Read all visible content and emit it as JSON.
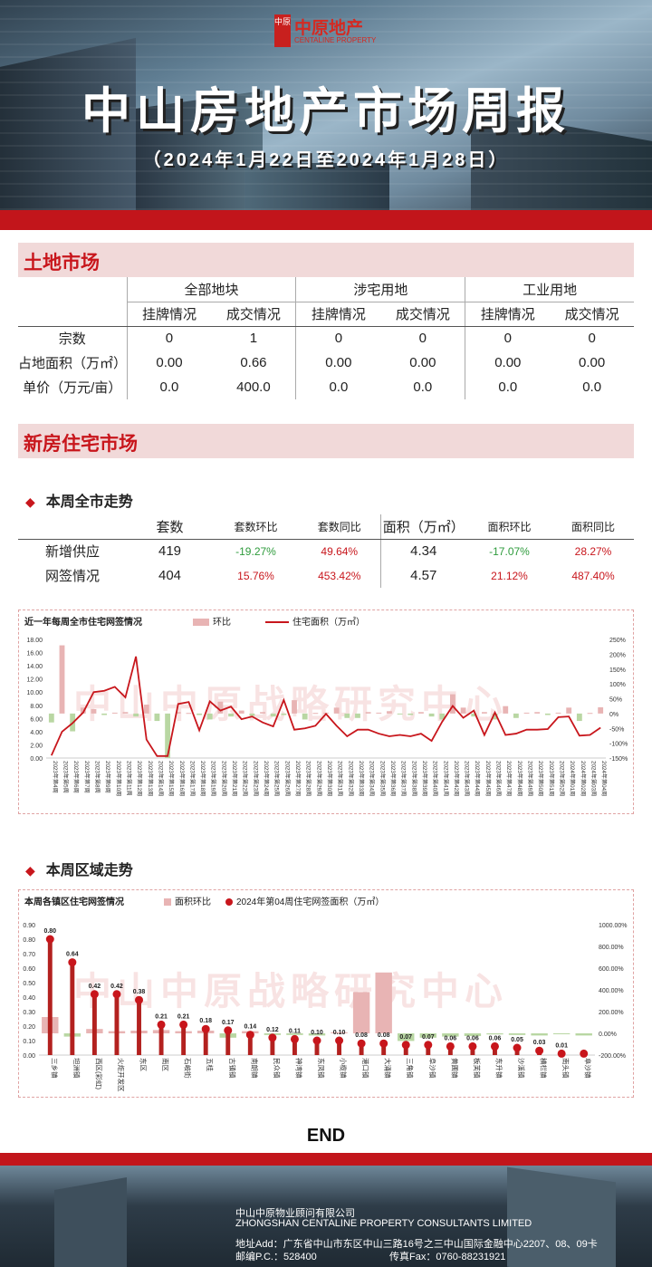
{
  "header": {
    "logo_mark": "中原",
    "logo_name": "中原地产",
    "logo_en": "CENTALINE PROPERTY",
    "title": "中山房地产市场周报",
    "subtitle": "（2024年1月22日至2024年1月28日）"
  },
  "land": {
    "section_title": "土地市场",
    "groups": [
      "全部地块",
      "涉宅用地",
      "工业用地"
    ],
    "subheaders": [
      "挂牌情况",
      "成交情况",
      "挂牌情况",
      "成交情况",
      "挂牌情况",
      "成交情况"
    ],
    "rows": [
      {
        "label": "宗数",
        "values": [
          "0",
          "1",
          "0",
          "0",
          "0",
          "0"
        ]
      },
      {
        "label": "占地面积（万㎡）",
        "values": [
          "0.00",
          "0.66",
          "0.00",
          "0.00",
          "0.00",
          "0.00"
        ]
      },
      {
        "label": "单价（万元/亩）",
        "values": [
          "0.0",
          "400.0",
          "0.0",
          "0.0",
          "0.0",
          "0.0"
        ]
      }
    ]
  },
  "new_home": {
    "section_title": "新房住宅市场",
    "city_heading": "本周全市走势",
    "city_headers": [
      "套数",
      "套数环比",
      "套数同比",
      "面积（万㎡）",
      "面积环比",
      "面积同比"
    ],
    "city_rows": [
      {
        "label": "新增供应",
        "values": [
          "419",
          "-19.27%",
          "49.64%",
          "4.34",
          "-17.07%",
          "28.27%"
        ]
      },
      {
        "label": "网签情况",
        "values": [
          "404",
          "15.76%",
          "453.42%",
          "4.57",
          "21.12%",
          "487.40%"
        ]
      }
    ],
    "region_heading": "本周区域走势"
  },
  "watermark": "中山中原战略研究中心",
  "colors": {
    "accent_red": "#c8161c",
    "pink_bar": "#e8b4b4",
    "green_bar": "#b9d7a3",
    "neg_text": "#2e9b3c"
  },
  "chart_data": [
    {
      "type": "bar",
      "title": "近一年每周全市住宅网签情况",
      "legend": [
        "环比",
        "住宅面积（万㎡）"
      ],
      "y_left_ticks": [
        "0.00",
        "2.00",
        "4.00",
        "6.00",
        "8.00",
        "10.00",
        "12.00",
        "14.00",
        "16.00",
        "18.00"
      ],
      "y_right_ticks": [
        "-150%",
        "-100%",
        "-50%",
        "0%",
        "50%",
        "100%",
        "150%",
        "200%",
        "250%"
      ],
      "ylim_left": [
        0,
        18
      ],
      "ylim_right": [
        -150,
        250
      ],
      "categories": [
        "2023年第4周",
        "2023年第5周",
        "2023年第6周",
        "2023年第7周",
        "2023年第8周",
        "2023年第9周",
        "2023年第10周",
        "2023年第11周",
        "2023年第12周",
        "2023年第13周",
        "2023年第14周",
        "2023年第15周",
        "2023年第16周",
        "2023年第17周",
        "2023年第18周",
        "2023年第19周",
        "2023年第20周",
        "2023年第21周",
        "2023年第22周",
        "2023年第23周",
        "2023年第24周",
        "2023年第25周",
        "2023年第26周",
        "2023年第27周",
        "2023年第28周",
        "2023年第29周",
        "2023年第30周",
        "2023年第31周",
        "2023年第32周",
        "2023年第33周",
        "2023年第34周",
        "2023年第35周",
        "2023年第36周",
        "2023年第37周",
        "2023年第38周",
        "2023年第39周",
        "2023年第40周",
        "2023年第41周",
        "2023年第42周",
        "2023年第43周",
        "2023年第44周",
        "2023年第45周",
        "2023年第46周",
        "2023年第47周",
        "2023年第48周",
        "2023年第49周",
        "2023年第50周",
        "2023年第51周",
        "2023年第52周",
        "2024年第01周",
        "2024年第02周",
        "2024年第03周",
        "2024年第04周"
      ],
      "series": [
        {
          "name": "环比",
          "axis": "right",
          "values": [
            -30,
            230,
            -60,
            20,
            15,
            -5,
            3,
            5,
            -10,
            30,
            -25,
            -150,
            5,
            2,
            -5,
            -20,
            40,
            -10,
            10,
            -8,
            5,
            -10,
            -5,
            45,
            -20,
            2,
            3,
            20,
            -15,
            -15,
            5,
            3,
            8,
            -2,
            -5,
            5,
            -10,
            -20,
            65,
            20,
            -10,
            5,
            -20,
            25,
            -15,
            3,
            5,
            -5,
            3,
            20,
            -25,
            2,
            21
          ]
        },
        {
          "name": "住宅面积（万㎡）",
          "axis": "left",
          "values": [
            0.4,
            4.0,
            5.3,
            6.9,
            10.0,
            10.2,
            10.8,
            9.2,
            15.4,
            2.8,
            0.3,
            0.3,
            8.2,
            8.5,
            4.2,
            8.6,
            7.2,
            7.8,
            5.9,
            6.3,
            5.4,
            4.8,
            8.8,
            4.3,
            4.5,
            4.9,
            6.7,
            4.9,
            3.3,
            4.3,
            4.3,
            3.7,
            3.3,
            3.5,
            3.3,
            3.7,
            2.6,
            5.5,
            7.9,
            6.1,
            7.2,
            3.5,
            6.9,
            3.5,
            3.7,
            4.3,
            4.3,
            4.4,
            6.2,
            6.3,
            3.4,
            3.5,
            4.6
          ]
        }
      ]
    },
    {
      "type": "bar",
      "title": "本周各镇区住宅网签情况",
      "legend": [
        "面积环比",
        "2024年第04周住宅网签面积（万㎡）"
      ],
      "y_left_ticks": [
        "0.00",
        "0.10",
        "0.20",
        "0.30",
        "0.40",
        "0.50",
        "0.60",
        "0.70",
        "0.80",
        "0.90"
      ],
      "y_right_ticks": [
        "-200.00%",
        "0.00%",
        "200.00%",
        "400.00%",
        "600.00%",
        "800.00%",
        "1000.00%"
      ],
      "ylim_left": [
        0,
        0.9
      ],
      "ylim_right": [
        -200,
        1000
      ],
      "categories": [
        "三乡镇",
        "坦洲镇",
        "西区(彩虹片区)",
        "火炬开发区",
        "东区",
        "南区",
        "石岐街道",
        "五桂山",
        "古镇镇",
        "南朗镇",
        "民众镇",
        "神湾镇",
        "东凤镇",
        "小榄镇",
        "港口镇",
        "大涌镇",
        "三角镇",
        "阜沙镇",
        "黄圃镇",
        "板芙镇",
        "东升镇",
        "沙溪镇",
        "横栏镇",
        "南头镇",
        "阜沙镇二"
      ],
      "category_labels": [
        "三乡镇",
        "坦洲镇",
        "西区(彩虹)",
        "火炬开发区",
        "东区",
        "南区",
        "石岐街",
        "五桂",
        "古镇镇",
        "南朗镇",
        "民众镇",
        "神湾镇",
        "东凤镇",
        "小榄镇",
        "港口镇",
        "大涌镇",
        "三角镇",
        "阜沙镇",
        "黄圃镇",
        "板芙镇",
        "东升镇",
        "沙溪镇",
        "横栏镇",
        "南头镇",
        "阜沙镇"
      ],
      "series": [
        {
          "name": "面积环比",
          "axis": "right",
          "values": [
            150,
            -30,
            40,
            20,
            25,
            30,
            20,
            25,
            -40,
            20,
            -15,
            -15,
            -20,
            10,
            380,
            560,
            -70,
            -40,
            -30,
            -25,
            -10,
            -15,
            -20,
            -5,
            -20
          ]
        },
        {
          "name": "2024年第04周住宅网签面积（万㎡）",
          "axis": "left",
          "values": [
            0.8,
            0.64,
            0.42,
            0.42,
            0.38,
            0.21,
            0.21,
            0.18,
            0.17,
            0.14,
            0.12,
            0.11,
            0.1,
            0.1,
            0.08,
            0.08,
            0.07,
            0.07,
            0.06,
            0.06,
            0.06,
            0.05,
            0.03,
            0.01,
            0.01
          ],
          "labels": [
            "0.80",
            "0.64",
            "0.42",
            "0.42",
            "0.38",
            "0.21",
            "0.21",
            "0.18",
            "0.17",
            "0.14",
            "0.12",
            "0.11",
            "0.10",
            "0.10",
            "0.08",
            "0.08",
            "0.07",
            "0.07",
            "0.06",
            "0.06",
            "0.06",
            "0.05",
            "0.03",
            "0.01",
            ""
          ]
        }
      ]
    }
  ],
  "end_text": "END",
  "footer": {
    "company_cn": "中山中原物业顾问有限公司",
    "company_en": "ZHONGSHAN CENTALINE PROPERTY CONSULTANTS LIMITED",
    "address": "地址Add：广东省中山市东区中山三路16号之三中山国际金融中心2207、08、09卡",
    "postcode": "邮编P.C.：528400",
    "fax": "传真Fax：0760-88231921"
  }
}
